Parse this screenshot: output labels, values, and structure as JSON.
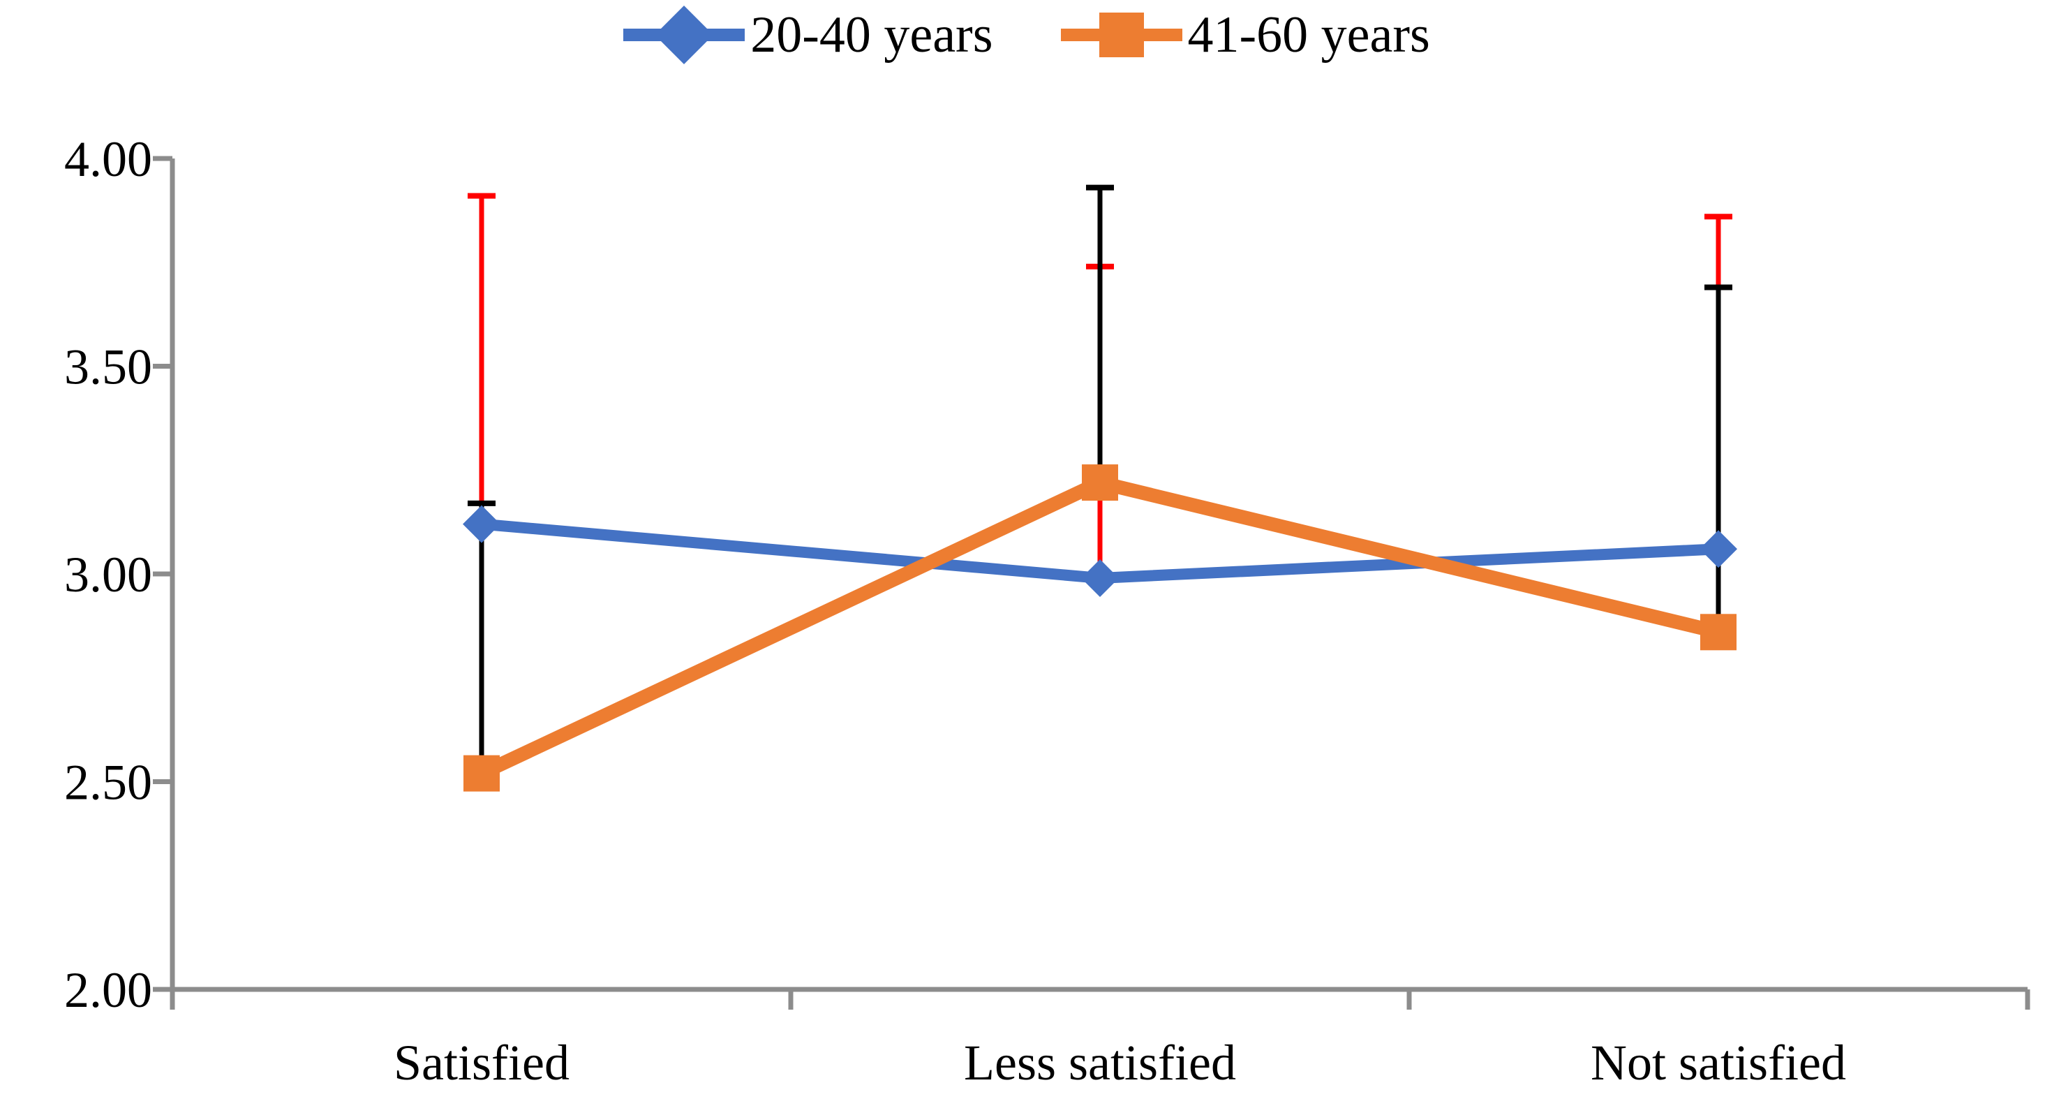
{
  "legend": {
    "items": [
      {
        "label": "20-40 years"
      },
      {
        "label": "41-60 years"
      }
    ]
  },
  "chart_data": {
    "type": "line",
    "title": "",
    "categories": [
      "Satisfied",
      "Less satisfied",
      "Not satisfied"
    ],
    "series": [
      {
        "name": "20-40 years",
        "color": "#4472C4",
        "marker": "diamond",
        "values": [
          3.12,
          2.99,
          3.06
        ],
        "error_bar_top": [
          3.91,
          3.74,
          3.86
        ],
        "error_bar_color": "#FF0000"
      },
      {
        "name": "41-60 years",
        "color": "#ED7D31",
        "marker": "square",
        "values": [
          2.52,
          3.22,
          2.86
        ],
        "error_bar_top": [
          3.17,
          3.93,
          3.69
        ],
        "error_bar_color": "#000000"
      }
    ],
    "ylim": [
      2.0,
      4.0
    ],
    "yticks": [
      {
        "value": 4.0,
        "label": "4.00"
      },
      {
        "value": 3.5,
        "label": "3.50"
      },
      {
        "value": 3.0,
        "label": "3.00"
      },
      {
        "value": 2.5,
        "label": "2.50"
      },
      {
        "value": 2.0,
        "label": "2.00"
      }
    ],
    "grid": false,
    "legend_position": "top",
    "axis_color": "#8C8C8C"
  }
}
